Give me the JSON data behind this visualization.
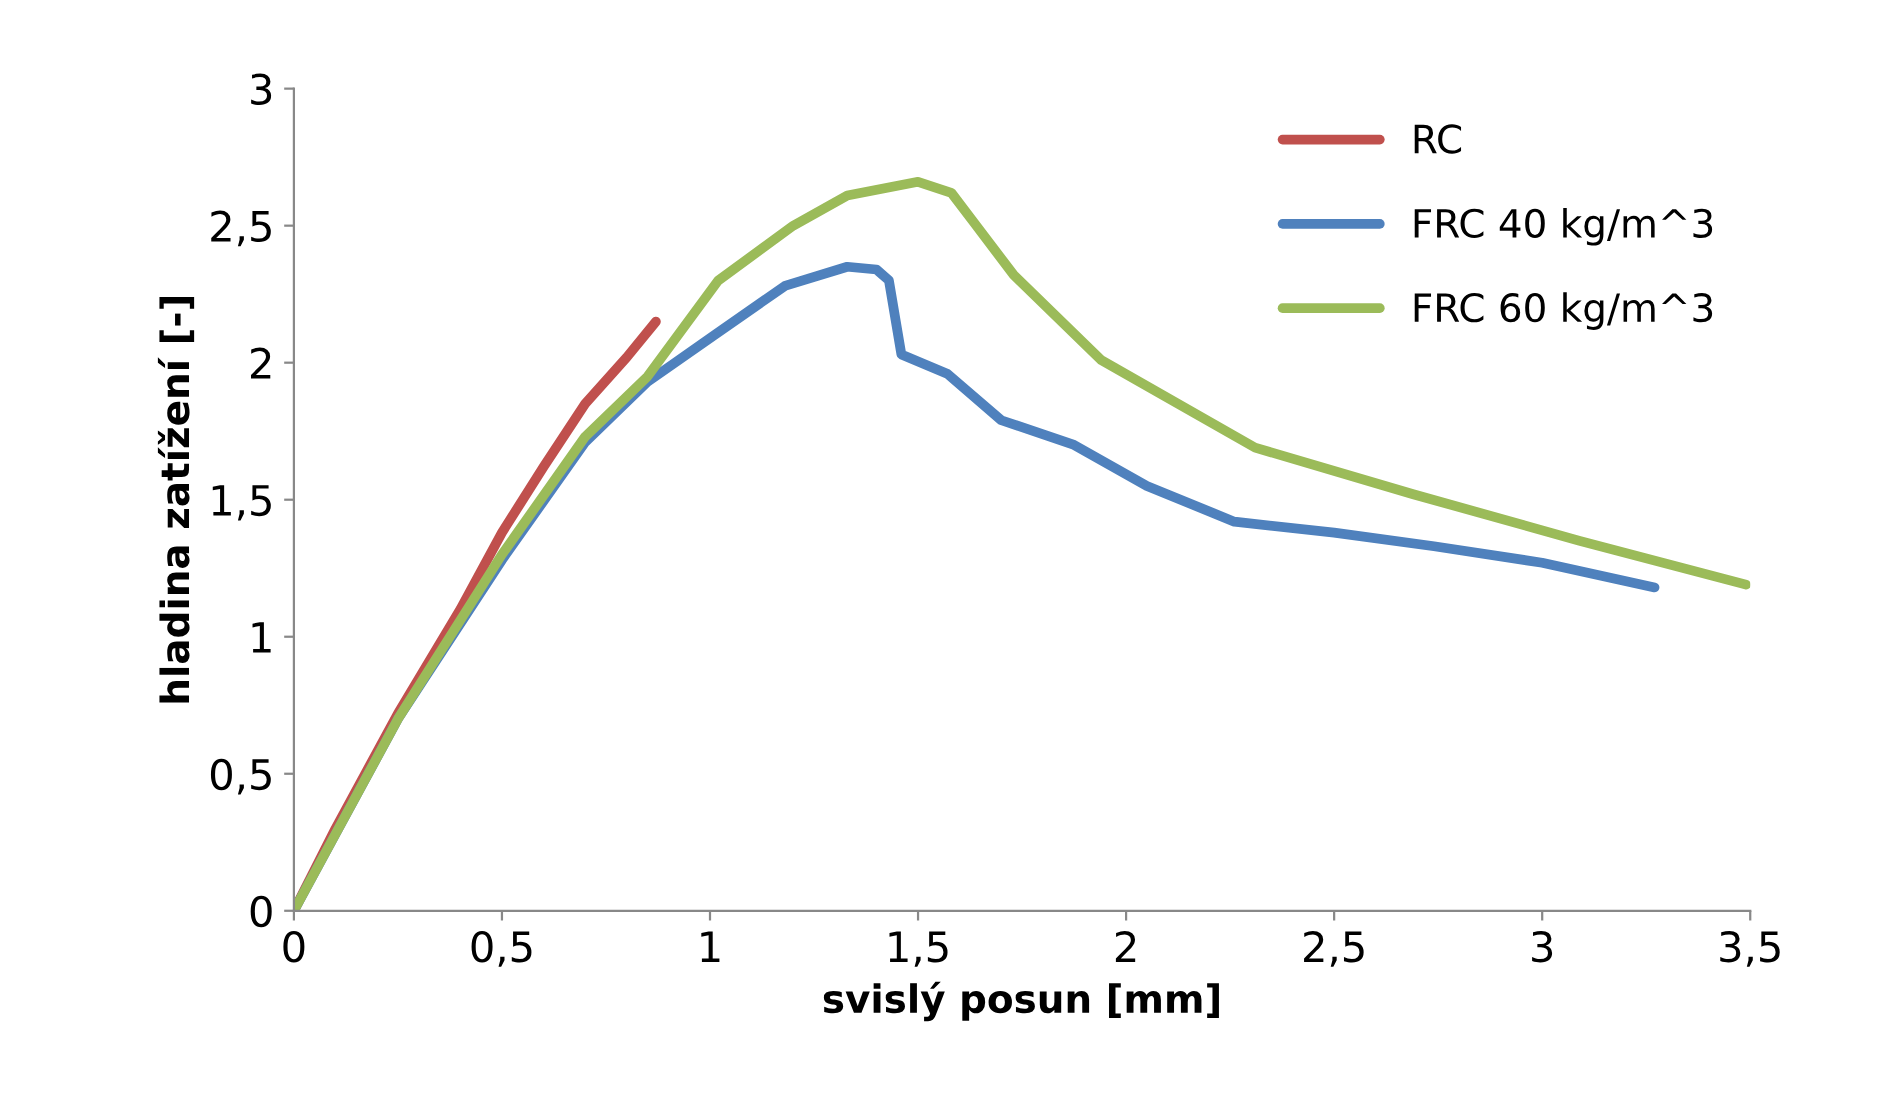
{
  "chart_data": {
    "type": "line",
    "xlabel": "svislý posun [mm]",
    "ylabel": "hladina zatížení [-]",
    "xlim": [
      0,
      3.5
    ],
    "ylim": [
      0,
      3
    ],
    "xticks": [
      0,
      {
        "value": 0.5,
        "label": "0,5"
      },
      1,
      {
        "value": 1.5,
        "label": "1,5"
      },
      2,
      {
        "value": 2.5,
        "label": "2,5"
      },
      3,
      {
        "value": 3.5,
        "label": "3,5"
      }
    ],
    "yticks": [
      0,
      {
        "value": 0.5,
        "label": "0,5"
      },
      1,
      {
        "value": 1.5,
        "label": "1,5"
      },
      2,
      {
        "value": 2.5,
        "label": "2,5"
      },
      3
    ],
    "grid": false,
    "legend": "top right",
    "marker": "none",
    "line_style": "solid",
    "series": [
      {
        "name": "RC",
        "color": "#c0504d",
        "x": [
          0,
          0.1,
          0.25,
          0.4,
          0.5,
          0.6,
          0.7,
          0.8,
          0.87
        ],
        "values": [
          0,
          0.3,
          0.72,
          1.1,
          1.38,
          1.62,
          1.85,
          2.02,
          2.15
        ]
      },
      {
        "name": "FRC 40 kg/m^3",
        "color": "#4f81bd",
        "x": [
          0,
          0.1,
          0.25,
          0.5,
          0.7,
          0.85,
          1.01,
          1.18,
          1.33,
          1.4,
          1.43,
          1.46,
          1.57,
          1.7,
          1.875,
          2.05,
          2.26,
          2.5,
          2.74,
          3.0,
          3.27
        ],
        "values": [
          0,
          0.28,
          0.7,
          1.28,
          1.71,
          1.93,
          2.1,
          2.28,
          2.35,
          2.34,
          2.3,
          2.03,
          1.96,
          1.79,
          1.7,
          1.55,
          1.42,
          1.38,
          1.33,
          1.27,
          1.18
        ]
      },
      {
        "name": "FRC 60 kg/m^3",
        "color": "#9bbb59",
        "x": [
          0,
          0.1,
          0.25,
          0.5,
          0.7,
          0.85,
          1.02,
          1.2,
          1.33,
          1.5,
          1.58,
          1.63,
          1.73,
          1.94,
          2.31,
          2.69,
          3.09,
          3.49
        ],
        "values": [
          0,
          0.28,
          0.7,
          1.3,
          1.73,
          1.95,
          2.3,
          2.5,
          2.61,
          2.66,
          2.62,
          2.52,
          2.32,
          2.01,
          1.69,
          1.52,
          1.35,
          1.19
        ]
      }
    ]
  }
}
